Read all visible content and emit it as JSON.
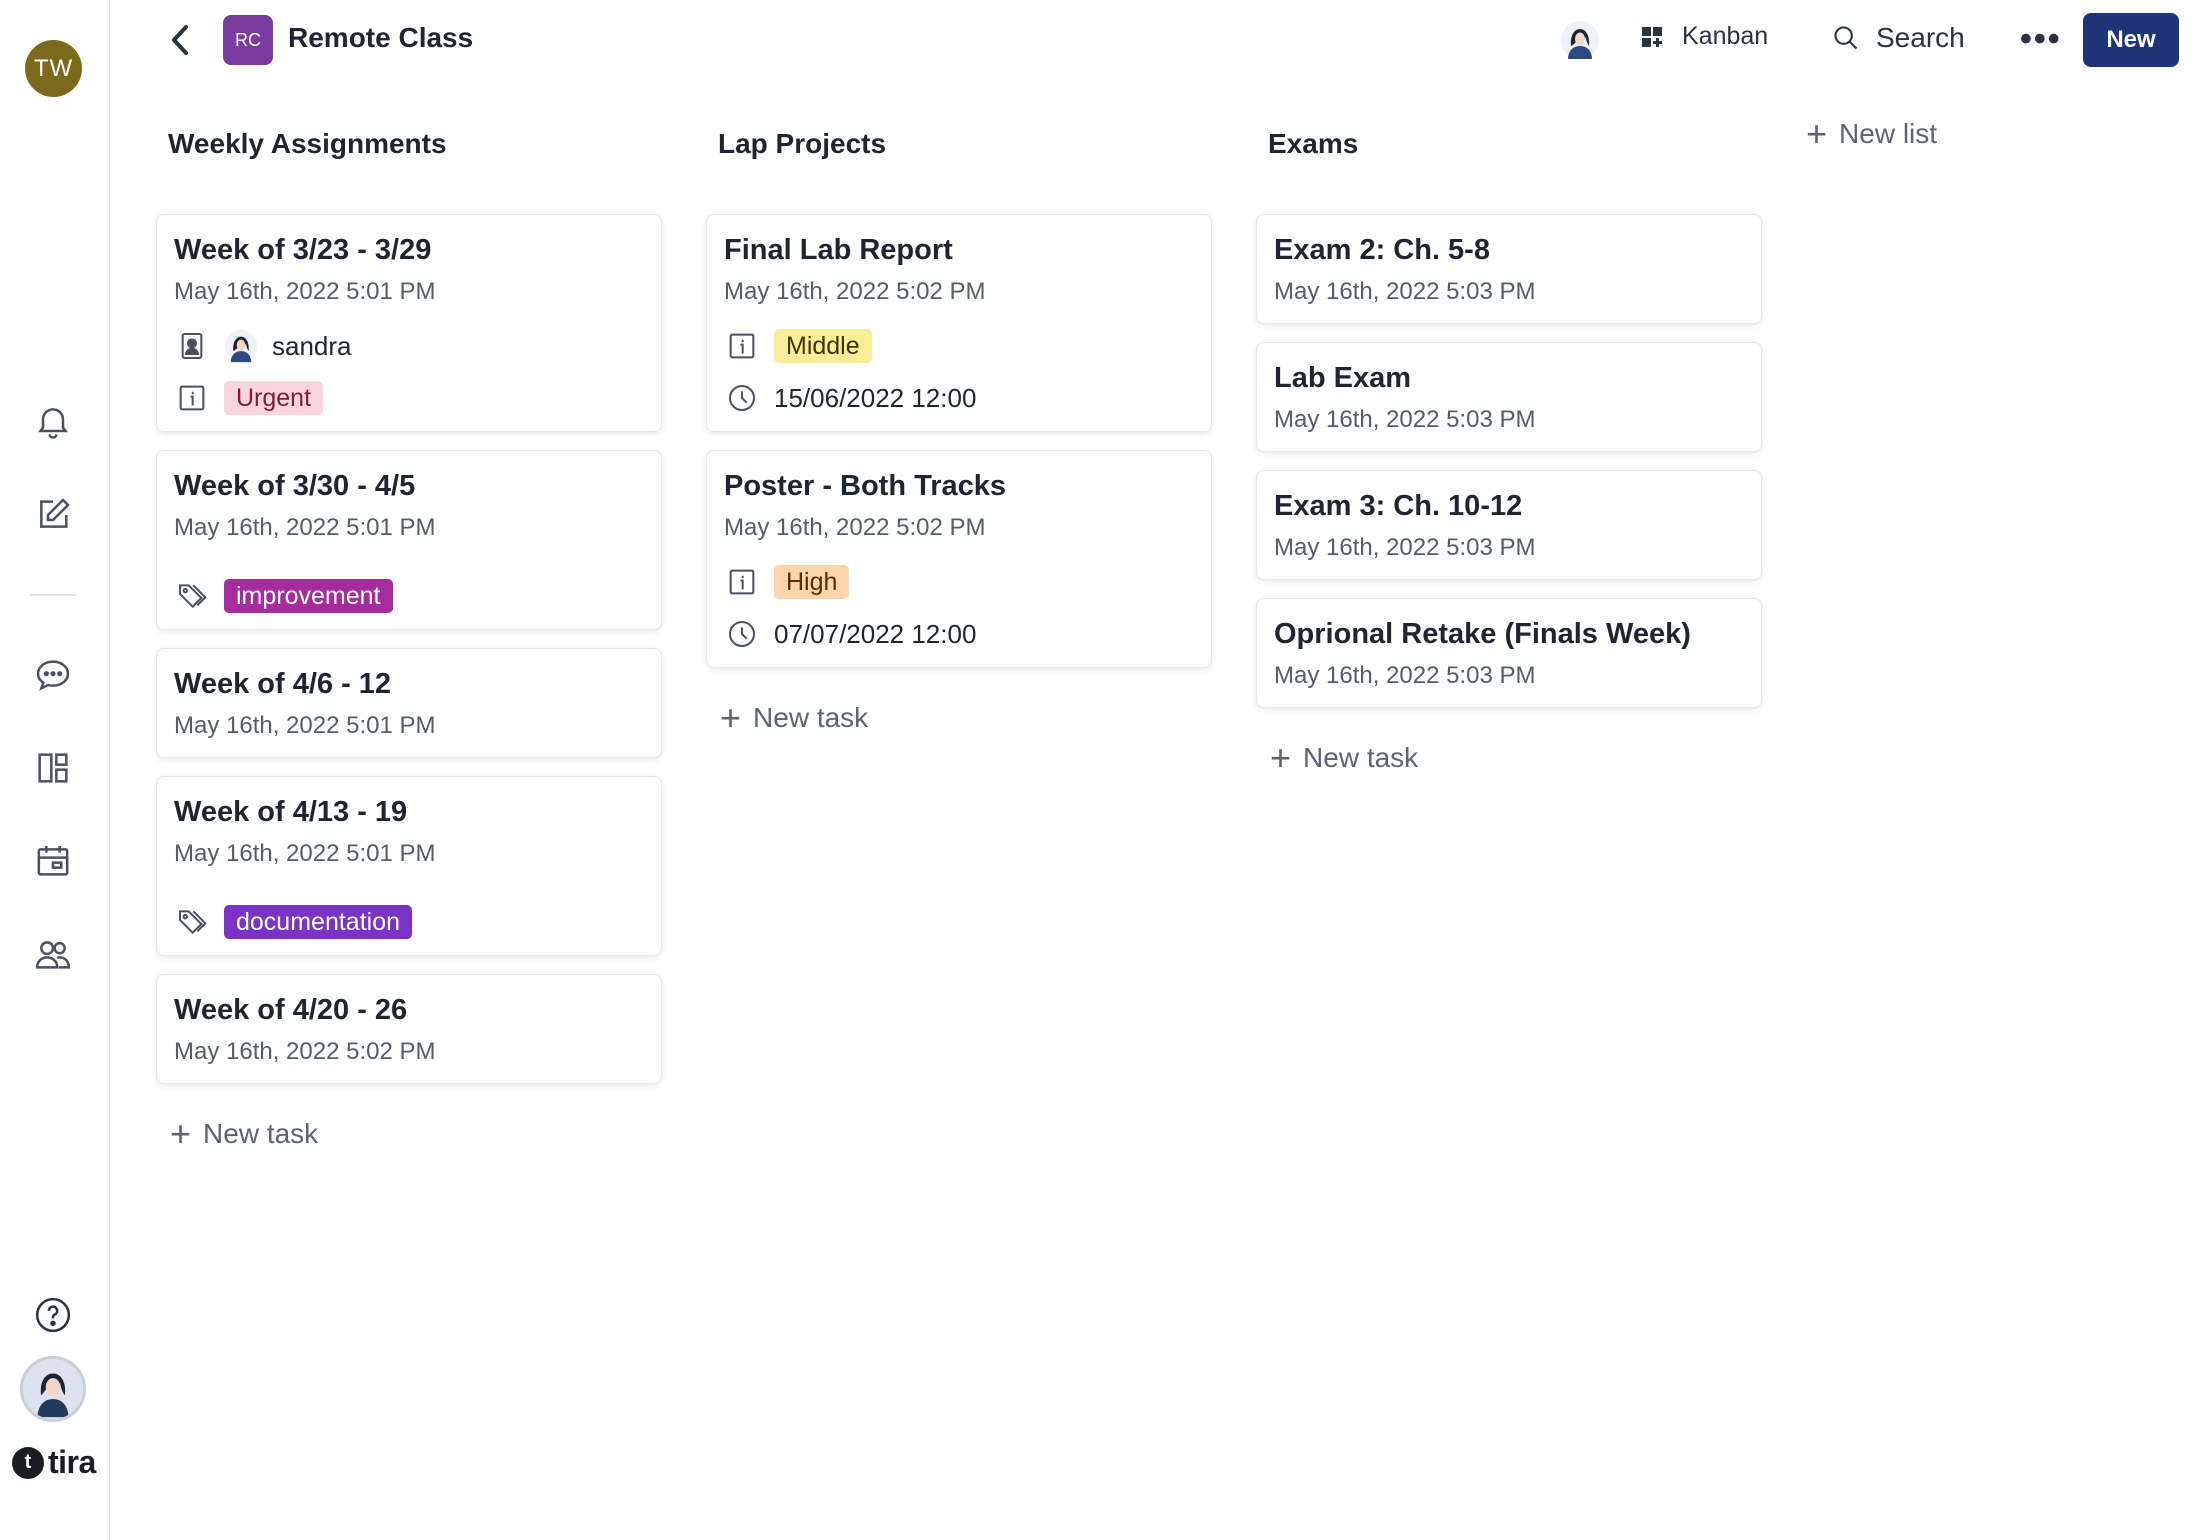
{
  "workspace": {
    "initials": "TW"
  },
  "brand": {
    "mark": "t",
    "name": "tira"
  },
  "header": {
    "project_initials": "RC",
    "project_title": "Remote Class",
    "view_label": "Kanban",
    "search_label": "Search",
    "more_label": "•••",
    "new_label": "New"
  },
  "columns": [
    {
      "title": "Weekly Assignments",
      "new_task": "New task",
      "cards": [
        {
          "title": "Week of 3/23 - 3/29",
          "date": "May 16th, 2022 5:01 PM",
          "assignee": "sandra",
          "priority": "Urgent"
        },
        {
          "title": "Week of 3/30 - 4/5",
          "date": "May 16th, 2022 5:01 PM",
          "tag": "improvement"
        },
        {
          "title": "Week of 4/6 - 12",
          "date": "May 16th, 2022 5:01 PM"
        },
        {
          "title": "Week of 4/13 - 19",
          "date": "May 16th, 2022 5:01 PM",
          "tag": "documentation"
        },
        {
          "title": "Week of 4/20 - 26",
          "date": "May 16th, 2022 5:02 PM"
        }
      ]
    },
    {
      "title": "Lap Projects",
      "new_task": "New task",
      "cards": [
        {
          "title": "Final Lab Report",
          "date": "May 16th, 2022 5:02 PM",
          "priority": "Middle",
          "due": "15/06/2022 12:00"
        },
        {
          "title": "Poster - Both Tracks",
          "date": "May 16th, 2022 5:02 PM",
          "priority": "High",
          "due": "07/07/2022 12:00"
        }
      ]
    },
    {
      "title": "Exams",
      "new_task": "New task",
      "cards": [
        {
          "title": "Exam 2: Ch. 5-8",
          "date": "May 16th, 2022 5:03 PM"
        },
        {
          "title": "Lab Exam",
          "date": "May 16th, 2022 5:03 PM"
        },
        {
          "title": "Exam 3: Ch. 10-12",
          "date": "May 16th, 2022 5:03 PM"
        },
        {
          "title": "Oprional Retake (Finals Week)",
          "date": "May 16th, 2022 5:03 PM"
        }
      ]
    }
  ],
  "new_list": "New list",
  "colors": {
    "primary": "#1e3478",
    "project_badge": "#7a3a9e",
    "workspace_avatar": "#7b6a1c",
    "urgent": "#fbd5dc",
    "middle": "#fbec9a",
    "high": "#fcd5ad",
    "improvement": "#a62b9d",
    "documentation": "#7a33c6"
  },
  "icons": {
    "rail": [
      "bell-icon",
      "edit-icon",
      "chat-icon",
      "layout-icon",
      "calendar-icon",
      "people-icon",
      "help-icon"
    ],
    "card": [
      "assignee-icon",
      "info-icon",
      "tag-icon",
      "clock-icon"
    ]
  }
}
